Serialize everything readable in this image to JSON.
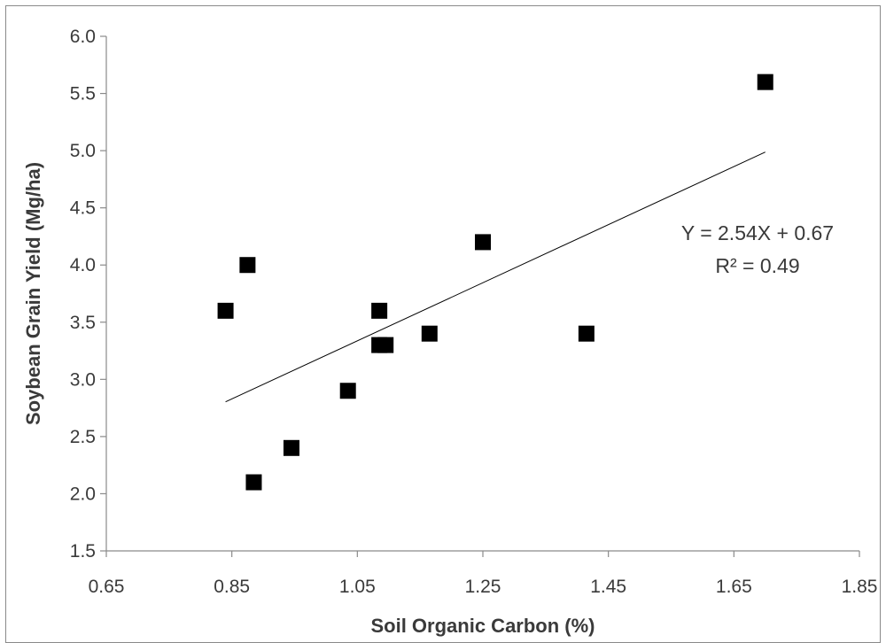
{
  "chart_data": {
    "type": "scatter",
    "title": "",
    "xlabel": "Soil Organic Carbon (%)",
    "ylabel": "Soybean Grain Yield (Mg/ha)",
    "xlim": [
      0.65,
      1.85
    ],
    "ylim": [
      1.5,
      6.0
    ],
    "x_ticks": [
      "0.65",
      "0.85",
      "1.05",
      "1.25",
      "1.45",
      "1.65",
      "1.85"
    ],
    "y_ticks": [
      "1.5",
      "2.0",
      "2.5",
      "3.0",
      "3.5",
      "4.0",
      "4.5",
      "5.0",
      "5.5",
      "6.0"
    ],
    "grid": false,
    "legend": "none",
    "marker_color": "#000000",
    "series": [
      {
        "points": [
          {
            "x": 0.84,
            "y": 3.6
          },
          {
            "x": 0.875,
            "y": 4.0
          },
          {
            "x": 0.885,
            "y": 2.1
          },
          {
            "x": 0.945,
            "y": 2.4
          },
          {
            "x": 1.035,
            "y": 2.9
          },
          {
            "x": 1.085,
            "y": 3.6
          },
          {
            "x": 1.085,
            "y": 3.3
          },
          {
            "x": 1.095,
            "y": 3.3
          },
          {
            "x": 1.165,
            "y": 3.4
          },
          {
            "x": 1.25,
            "y": 4.2
          },
          {
            "x": 1.415,
            "y": 3.4
          },
          {
            "x": 1.7,
            "y": 5.6
          }
        ]
      }
    ],
    "trendline": {
      "slope": 2.54,
      "intercept": 0.67,
      "x_range": [
        0.84,
        1.7
      ],
      "color": "#000000"
    },
    "annotations": [
      "Y = 2.54X + 0.67",
      "R² = 0.49"
    ]
  }
}
